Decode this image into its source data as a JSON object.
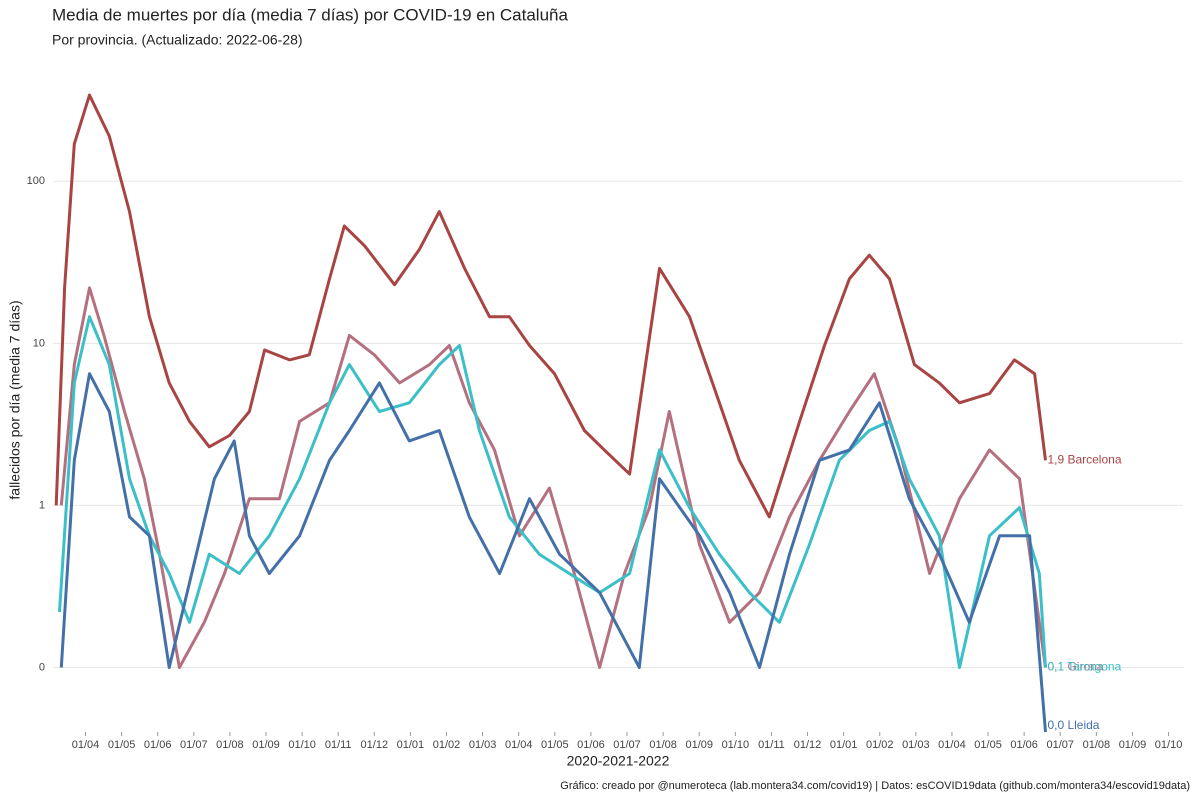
{
  "chart_data": {
    "type": "line",
    "title": "Media de muertes por día (media 7 días) por COVID-19 en Cataluña",
    "subtitle": "Por provincia. (Actualizado: 2022-06-28)",
    "x_label": "2020-2021-2022",
    "y_label": "fallecidos por día (media 7 días)",
    "caption": "Gráfico: creado por @numeroteca (lab.montera34.com/covid19) | Datos: esCOVID19data (github.com/montera34/escovid19data)",
    "log_scale": true,
    "grid": true,
    "xlim": [
      0.1,
      31.4
    ],
    "ylim": [
      0.04,
      500
    ],
    "yticks": [
      {
        "value": 0.1,
        "label": "0"
      },
      1,
      10,
      100
    ],
    "xticks": [
      {
        "value": 1,
        "label": "01/04"
      },
      {
        "value": 2,
        "label": "01/05"
      },
      {
        "value": 3,
        "label": "01/06"
      },
      {
        "value": 4,
        "label": "01/07"
      },
      {
        "value": 5,
        "label": "01/08"
      },
      {
        "value": 6,
        "label": "01/09"
      },
      {
        "value": 7,
        "label": "01/10"
      },
      {
        "value": 8,
        "label": "01/11"
      },
      {
        "value": 9,
        "label": "01/12"
      },
      {
        "value": 10,
        "label": "01/01"
      },
      {
        "value": 11,
        "label": "01/02"
      },
      {
        "value": 12,
        "label": "01/03"
      },
      {
        "value": 13,
        "label": "01/04"
      },
      {
        "value": 14,
        "label": "01/05"
      },
      {
        "value": 15,
        "label": "01/06"
      },
      {
        "value": 16,
        "label": "01/07"
      },
      {
        "value": 17,
        "label": "01/08"
      },
      {
        "value": 18,
        "label": "01/09"
      },
      {
        "value": 19,
        "label": "01/10"
      },
      {
        "value": 20,
        "label": "01/11"
      },
      {
        "value": 21,
        "label": "01/12"
      },
      {
        "value": 22,
        "label": "01/01"
      },
      {
        "value": 23,
        "label": "01/02"
      },
      {
        "value": 24,
        "label": "01/03"
      },
      {
        "value": 25,
        "label": "01/04"
      },
      {
        "value": 26,
        "label": "01/05"
      },
      {
        "value": 27,
        "label": "01/06"
      },
      {
        "value": 28,
        "label": "01/07"
      },
      {
        "value": 29,
        "label": "01/08"
      },
      {
        "value": 30,
        "label": "01/09"
      },
      {
        "value": 31,
        "label": "01/10"
      }
    ],
    "series": [
      {
        "name": "Barcelona",
        "color": "#a84444",
        "end_label": "1,9 Barcelona",
        "x": [
          0.19,
          0.42,
          0.69,
          1.11,
          1.66,
          2.22,
          2.77,
          3.32,
          3.88,
          4.43,
          4.99,
          5.54,
          5.96,
          6.65,
          7.2,
          7.76,
          8.17,
          8.73,
          9.56,
          10.25,
          10.8,
          11.5,
          12.19,
          12.74,
          13.3,
          13.99,
          14.82,
          15.37,
          16.07,
          16.9,
          17.73,
          18.28,
          19.11,
          19.94,
          20.78,
          21.47,
          22.16,
          22.71,
          23.27,
          23.96,
          24.65,
          25.21,
          26.04,
          26.73,
          27.29,
          27.59
        ],
        "values": [
          1,
          22,
          170,
          340,
          190,
          65,
          14.6,
          5.7,
          3.3,
          2.3,
          2.7,
          3.8,
          9.1,
          7.9,
          8.5,
          25,
          53,
          40,
          23,
          38,
          65,
          29,
          14.6,
          14.6,
          9.7,
          6.5,
          2.9,
          2.2,
          1.56,
          29,
          14.6,
          6.5,
          1.9,
          0.85,
          3.3,
          9.7,
          25,
          35,
          25,
          7.4,
          5.7,
          4.3,
          4.9,
          7.9,
          6.5,
          1.9
        ]
      },
      {
        "name": "Girona",
        "color": "#b5707f",
        "end_label": "0,1 Girona",
        "x": [
          0.33,
          0.69,
          1.11,
          1.52,
          2.08,
          2.63,
          3.05,
          3.6,
          4.29,
          4.85,
          5.54,
          6.37,
          6.93,
          7.76,
          8.31,
          9.0,
          9.7,
          10.53,
          11.08,
          11.63,
          12.33,
          13.02,
          13.85,
          14.54,
          15.24,
          15.93,
          16.62,
          17.17,
          18.01,
          18.84,
          19.67,
          20.5,
          21.33,
          22.16,
          22.85,
          23.55,
          24.38,
          25.21,
          26.04,
          26.87,
          27.59
        ],
        "values": [
          1,
          7.4,
          22,
          11,
          3.8,
          1.46,
          0.5,
          0.1,
          0.19,
          0.38,
          1.1,
          1.1,
          3.3,
          4.3,
          11.2,
          8.5,
          5.7,
          7.4,
          9.7,
          4.3,
          2.2,
          0.65,
          1.28,
          0.38,
          0.1,
          0.38,
          0.97,
          3.8,
          0.57,
          0.19,
          0.29,
          0.85,
          1.9,
          3.8,
          6.5,
          2.2,
          0.38,
          1.1,
          2.2,
          1.46,
          0.1
        ]
      },
      {
        "name": "Tarragona",
        "color": "#3bbfc8",
        "end_label": "0,1 Tarragona",
        "x": [
          0.28,
          0.69,
          1.11,
          1.66,
          2.22,
          2.77,
          3.32,
          3.88,
          4.43,
          5.26,
          6.09,
          6.93,
          7.76,
          8.31,
          9.14,
          9.97,
          10.8,
          11.36,
          11.91,
          12.74,
          13.57,
          14.4,
          15.24,
          16.07,
          16.9,
          17.73,
          18.56,
          19.39,
          20.22,
          21.05,
          21.88,
          22.71,
          23.27,
          23.82,
          24.65,
          25.21,
          26.04,
          26.87,
          27.42,
          27.59
        ],
        "values": [
          0.22,
          5.7,
          14.6,
          7.4,
          1.46,
          0.65,
          0.38,
          0.19,
          0.5,
          0.38,
          0.65,
          1.46,
          4.3,
          7.4,
          3.8,
          4.3,
          7.4,
          9.7,
          2.9,
          0.85,
          0.5,
          0.38,
          0.29,
          0.38,
          2.2,
          0.97,
          0.5,
          0.29,
          0.19,
          0.57,
          1.9,
          2.9,
          3.3,
          1.46,
          0.65,
          0.1,
          0.65,
          0.97,
          0.38,
          0.1
        ]
      },
      {
        "name": "Lleida",
        "color": "#4470a8",
        "end_label": "0,0 Lleida",
        "x": [
          0.33,
          0.69,
          1.11,
          1.66,
          2.22,
          2.77,
          3.32,
          4.57,
          5.12,
          5.54,
          6.09,
          6.93,
          7.76,
          8.31,
          9.14,
          9.97,
          10.8,
          11.63,
          12.47,
          13.3,
          14.13,
          15.24,
          16.34,
          16.9,
          18.01,
          18.84,
          19.67,
          20.5,
          21.33,
          22.16,
          22.99,
          23.82,
          24.65,
          25.48,
          26.32,
          27.15,
          27.59
        ],
        "values": [
          0.1,
          1.9,
          6.5,
          3.8,
          0.85,
          0.65,
          0.1,
          1.46,
          2.5,
          0.65,
          0.38,
          0.65,
          1.9,
          2.9,
          5.7,
          2.5,
          2.9,
          0.85,
          0.38,
          1.1,
          0.5,
          0.29,
          0.1,
          1.46,
          0.65,
          0.29,
          0.1,
          0.5,
          1.9,
          2.2,
          4.3,
          1.1,
          0.5,
          0.19,
          0.65,
          0.65,
          0.04
        ]
      }
    ]
  }
}
